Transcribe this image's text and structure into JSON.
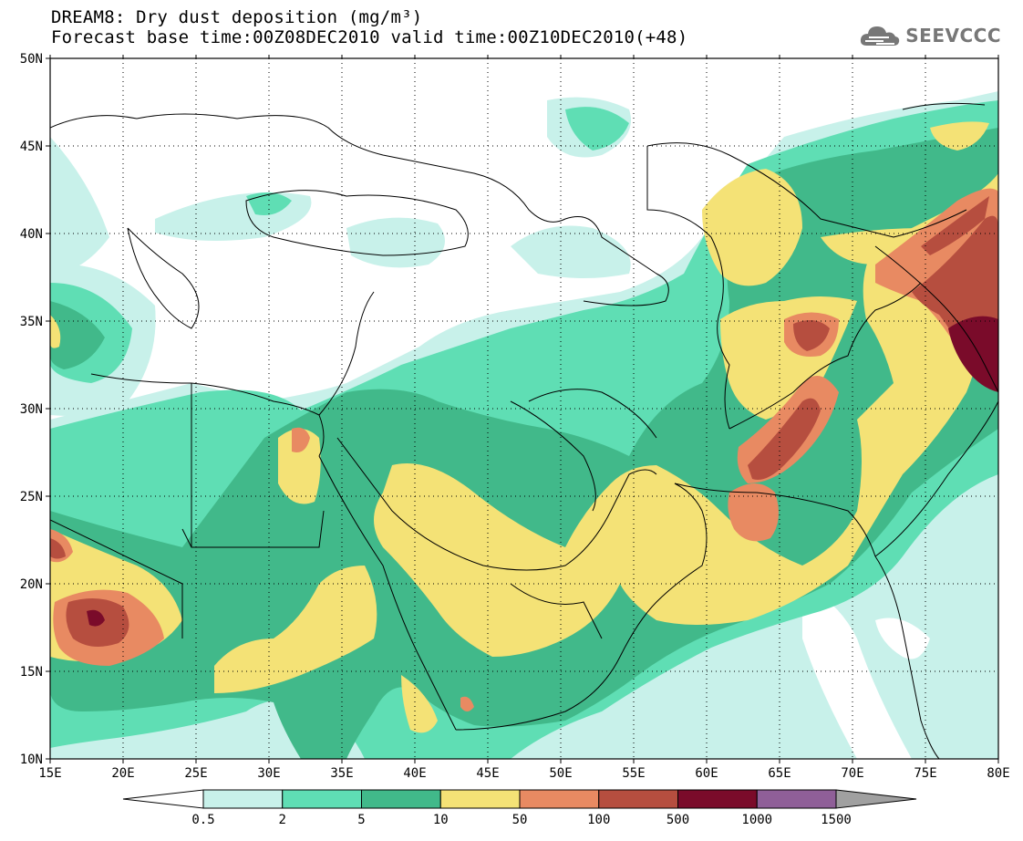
{
  "header": {
    "line1": "DREAM8: Dry dust deposition (mg/m³)",
    "line2": "Forecast base time:00Z08DEC2010 valid time:00Z10DEC2010(+48)"
  },
  "logo": {
    "text": "SEEVCCC",
    "icon": "cloud-icon"
  },
  "map": {
    "lon_range": [
      15,
      80
    ],
    "lat_range": [
      10,
      50
    ],
    "lon_ticks": [
      "15E",
      "20E",
      "25E",
      "30E",
      "35E",
      "40E",
      "45E",
      "50E",
      "55E",
      "60E",
      "65E",
      "70E",
      "75E",
      "80E"
    ],
    "lat_ticks": [
      "10N",
      "15N",
      "20N",
      "25N",
      "30N",
      "35N",
      "40N",
      "45N",
      "50N"
    ],
    "grid": "dotted"
  },
  "colorbar": {
    "labels": [
      "0.5",
      "2",
      "5",
      "10",
      "50",
      "100",
      "500",
      "1000",
      "1500"
    ],
    "colors": [
      "#ffffff",
      "#c8f1ea",
      "#5fdeb4",
      "#41b98a",
      "#f4e276",
      "#e88a62",
      "#b64e3f",
      "#7a0b2a",
      "#8f5f98",
      "#a0a0a0"
    ]
  }
}
